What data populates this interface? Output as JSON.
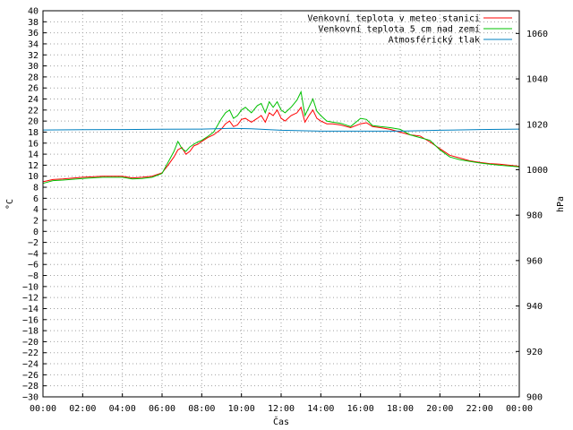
{
  "chart_data": {
    "type": "line",
    "xlabel": "Čas",
    "ylabel": "°C",
    "y2label": "hPa",
    "x_ticks": [
      "00:00",
      "02:00",
      "04:00",
      "06:00",
      "08:00",
      "10:00",
      "12:00",
      "14:00",
      "16:00",
      "18:00",
      "20:00",
      "22:00",
      "00:00"
    ],
    "xlim": [
      0,
      24
    ],
    "ylim": [
      -30,
      40
    ],
    "y_step": 2,
    "y2lim": [
      900,
      1070
    ],
    "y2_ticks": [
      900,
      920,
      940,
      960,
      980,
      1000,
      1020,
      1040,
      1060
    ],
    "grid": true,
    "legend_position": "top-right",
    "series": [
      {
        "name": "Venkovní teplota v meteo stanici",
        "axis": "left",
        "color": "#ff0000",
        "x": [
          0,
          0.5,
          1,
          2,
          3,
          4,
          4.5,
          5,
          5.5,
          6,
          6.3,
          6.6,
          6.8,
          7,
          7.2,
          7.4,
          7.6,
          7.8,
          8,
          8.3,
          8.6,
          9,
          9.2,
          9.4,
          9.6,
          9.8,
          10,
          10.2,
          10.5,
          10.8,
          11,
          11.2,
          11.4,
          11.6,
          11.8,
          12,
          12.2,
          12.5,
          12.8,
          13,
          13.2,
          13.4,
          13.6,
          13.8,
          14,
          14.3,
          14.6,
          15,
          15.5,
          16,
          16.3,
          16.6,
          17,
          17.5,
          18,
          18.5,
          19,
          19.5,
          20,
          20.5,
          21,
          21.5,
          22,
          22.5,
          23,
          24
        ],
        "y": [
          9,
          9.4,
          9.5,
          9.8,
          10,
          10,
          9.7,
          9.8,
          10,
          10.6,
          12,
          13.5,
          14.8,
          15.2,
          14,
          14.5,
          15.5,
          15.8,
          16.3,
          17,
          17.5,
          18.6,
          19.5,
          20,
          19,
          19.3,
          20.3,
          20.5,
          19.8,
          20.5,
          21,
          19.8,
          21.5,
          21,
          22,
          20.5,
          20,
          21,
          21.5,
          22.5,
          19.8,
          21,
          22,
          20.5,
          20,
          19.5,
          19.5,
          19.3,
          18.8,
          19.5,
          19.7,
          19,
          18.8,
          18.5,
          18,
          17.5,
          17.3,
          16.2,
          15,
          13.8,
          13.3,
          12.8,
          12.5,
          12.3,
          12.2,
          11.8
        ]
      },
      {
        "name": "Venkovní teplota 5 cm nad zemí",
        "axis": "left",
        "color": "#00c000",
        "x": [
          0,
          0.5,
          1,
          2,
          3,
          4,
          4.5,
          5,
          5.5,
          6,
          6.3,
          6.6,
          6.8,
          7,
          7.2,
          7.4,
          7.6,
          7.8,
          8,
          8.3,
          8.6,
          9,
          9.2,
          9.4,
          9.6,
          9.8,
          10,
          10.2,
          10.5,
          10.8,
          11,
          11.2,
          11.4,
          11.6,
          11.8,
          12,
          12.2,
          12.5,
          12.8,
          13,
          13.2,
          13.4,
          13.6,
          13.8,
          14,
          14.3,
          14.6,
          15,
          15.5,
          16,
          16.3,
          16.6,
          17,
          17.5,
          18,
          18.5,
          19,
          19.5,
          20,
          20.5,
          21,
          21.5,
          22,
          22.5,
          23,
          24
        ],
        "y": [
          8.7,
          9.2,
          9.3,
          9.6,
          9.8,
          9.8,
          9.5,
          9.6,
          9.8,
          10.5,
          12.5,
          14.5,
          16.3,
          15,
          14.5,
          15.3,
          15.8,
          16.2,
          16.5,
          17.2,
          18,
          20.5,
          21.5,
          22,
          20.5,
          21,
          22,
          22.5,
          21.5,
          22.8,
          23.2,
          21.5,
          23.5,
          22.5,
          23.5,
          22,
          21.5,
          22.5,
          23.8,
          25.3,
          21,
          22.5,
          24,
          21.8,
          21,
          20,
          19.8,
          19.6,
          19,
          20.5,
          20.3,
          19.2,
          19,
          18.8,
          18.5,
          17.5,
          17,
          16.5,
          14.8,
          13.5,
          13,
          12.7,
          12.4,
          12.2,
          12,
          11.7
        ]
      },
      {
        "name": "Atmosférický tlak",
        "axis": "right",
        "color": "#0080c0",
        "x": [
          0,
          2,
          4,
          6,
          8,
          9.5,
          10.5,
          12,
          14,
          16,
          18,
          20,
          22,
          24
        ],
        "y": [
          1017.5,
          1017.6,
          1017.7,
          1017.8,
          1017.9,
          1018.2,
          1018.0,
          1017.4,
          1017.0,
          1017.0,
          1017.0,
          1017.4,
          1017.7,
          1017.9
        ]
      }
    ]
  }
}
